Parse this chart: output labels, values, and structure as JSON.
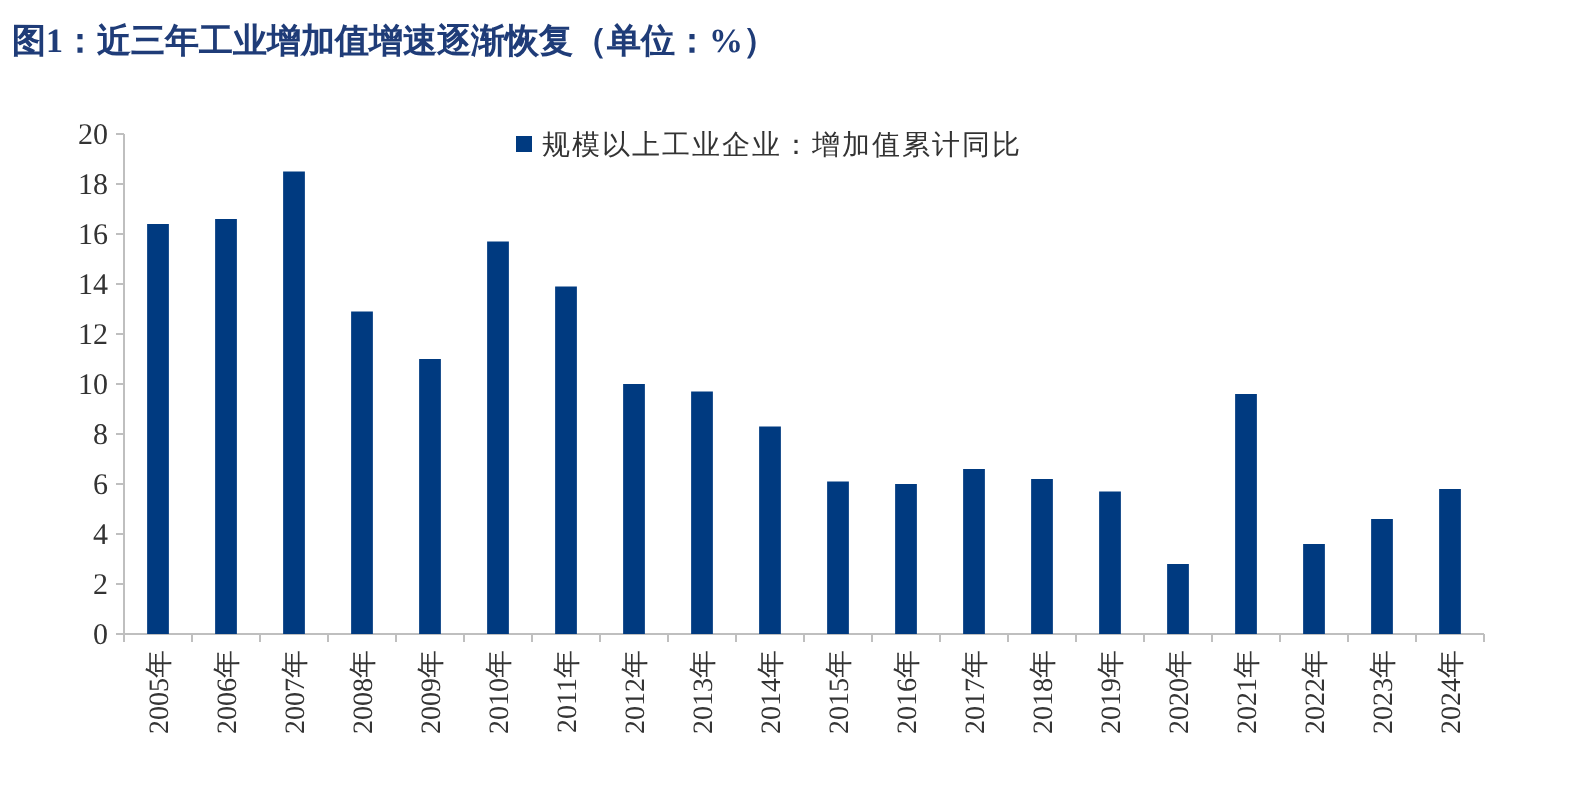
{
  "chart_data": {
    "type": "bar",
    "title": "图1：近三年工业增加值增速逐渐恢复（单位：%）",
    "categories": [
      "2005年",
      "2006年",
      "2007年",
      "2008年",
      "2009年",
      "2010年",
      "2011年",
      "2012年",
      "2013年",
      "2014年",
      "2015年",
      "2016年",
      "2017年",
      "2018年",
      "2019年",
      "2020年",
      "2021年",
      "2022年",
      "2023年",
      "2024年"
    ],
    "series": [
      {
        "name": "规模以上工业企业：增加值累计同比",
        "color": "#003a80",
        "values": [
          16.4,
          16.6,
          18.5,
          12.9,
          11.0,
          15.7,
          13.9,
          10.0,
          9.7,
          8.3,
          6.1,
          6.0,
          6.6,
          6.2,
          5.7,
          2.8,
          9.6,
          3.6,
          4.6,
          5.8
        ]
      }
    ],
    "ylim": [
      0,
      20
    ],
    "yticks": [
      0,
      2,
      4,
      6,
      8,
      10,
      12,
      14,
      16,
      18,
      20
    ],
    "legend": "top",
    "grid": false
  }
}
